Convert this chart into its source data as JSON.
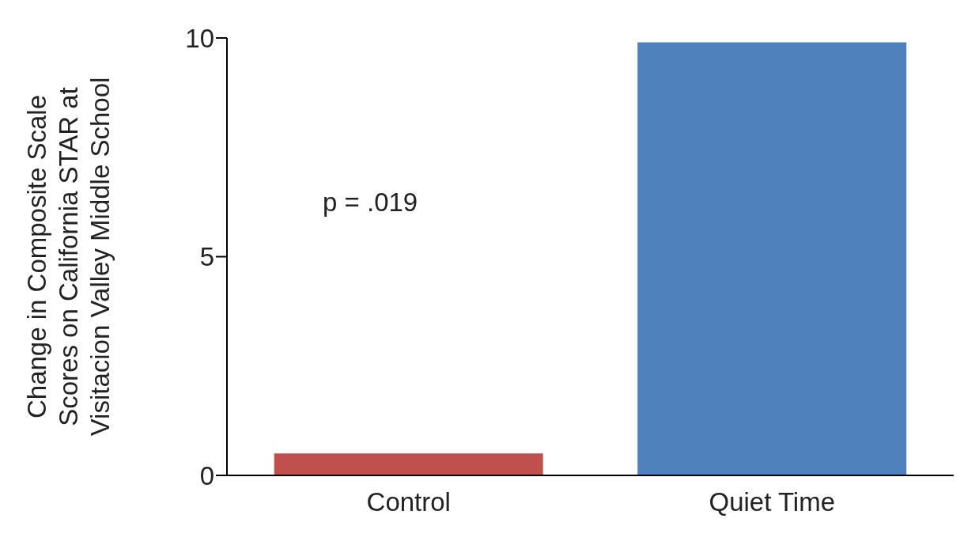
{
  "chart_data": {
    "type": "bar",
    "ylabel": "Change in Composite  Scale\nScores  on California STAR at\nVisitacion Valley Middle School",
    "categories": [
      "Control",
      "Quiet Time"
    ],
    "values": [
      0.5,
      9.9
    ],
    "colors": [
      "#c0504d",
      "#4f81bd"
    ],
    "ylim": [
      0,
      10
    ],
    "yticks": [
      0,
      5,
      10
    ],
    "annotations": [
      "p = .019"
    ]
  }
}
